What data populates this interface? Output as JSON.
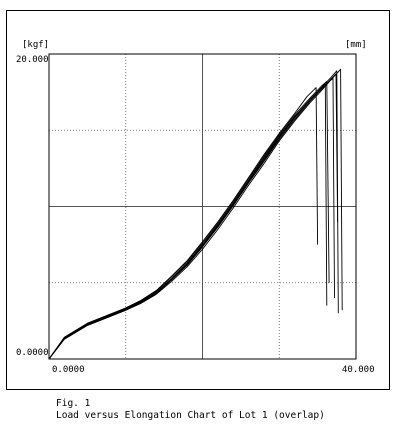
{
  "chart_data": {
    "type": "line",
    "y_unit": "[kgf]",
    "x_unit": "[mm]",
    "y_tick_labels": [
      "20.000",
      "0.0000"
    ],
    "x_tick_labels": [
      "0.0000",
      "40.000"
    ],
    "xlim": [
      0,
      40
    ],
    "ylim": [
      0,
      20
    ],
    "grid": true,
    "series": [
      {
        "x": [
          0,
          2,
          5,
          8,
          10,
          12,
          14,
          16,
          18,
          20,
          22,
          24,
          26,
          28,
          30,
          32,
          34,
          35.5,
          36.5,
          37.0,
          37.2
        ],
        "y": [
          0,
          1.4,
          2.3,
          2.9,
          3.3,
          3.8,
          4.4,
          5.3,
          6.3,
          7.5,
          8.8,
          10.2,
          11.7,
          13.2,
          14.6,
          15.9,
          17.0,
          17.7,
          18.2,
          18.4,
          4.0
        ]
      },
      {
        "x": [
          0,
          2,
          5,
          8,
          10,
          12,
          14,
          16,
          18,
          20,
          22,
          24,
          26,
          28,
          30,
          32,
          34,
          35.5,
          36.0,
          36.2
        ],
        "y": [
          0,
          1.3,
          2.2,
          2.8,
          3.2,
          3.7,
          4.3,
          5.2,
          6.2,
          7.4,
          8.7,
          10.1,
          11.6,
          13.0,
          14.5,
          15.8,
          17.0,
          17.8,
          18.0,
          3.5
        ]
      },
      {
        "x": [
          0,
          2,
          5,
          8,
          10,
          12,
          14,
          16,
          18,
          20,
          22,
          24,
          26,
          28,
          30,
          32,
          34,
          35.5,
          36.8,
          37.5,
          37.7
        ],
        "y": [
          0,
          1.35,
          2.25,
          2.85,
          3.25,
          3.75,
          4.35,
          5.25,
          6.25,
          7.45,
          8.75,
          10.15,
          11.65,
          13.1,
          14.55,
          15.85,
          17.0,
          17.8,
          18.5,
          18.9,
          3.0
        ]
      },
      {
        "x": [
          0,
          2,
          5,
          8,
          10,
          12,
          14,
          16,
          18,
          20,
          22,
          24,
          26,
          28,
          30,
          32,
          33.6,
          34.8,
          35.0
        ],
        "y": [
          0,
          1.42,
          2.35,
          2.95,
          3.35,
          3.85,
          4.5,
          5.45,
          6.45,
          7.7,
          9.0,
          10.4,
          11.9,
          13.4,
          14.8,
          16.1,
          17.2,
          17.8,
          7.5
        ]
      },
      {
        "x": [
          0,
          2,
          5,
          8,
          10,
          12,
          14,
          16,
          18,
          20,
          22,
          24,
          26,
          28,
          30,
          32,
          34,
          35.5,
          36.9,
          38.0,
          38.2
        ],
        "y": [
          0,
          1.3,
          2.2,
          2.8,
          3.2,
          3.65,
          4.25,
          5.1,
          6.05,
          7.2,
          8.5,
          9.9,
          11.4,
          12.8,
          14.3,
          15.6,
          16.8,
          17.6,
          18.4,
          19.0,
          3.2
        ]
      },
      {
        "x": [
          0,
          2,
          5,
          8,
          10,
          12,
          14,
          16,
          18,
          20,
          22,
          24,
          26,
          28,
          30,
          32,
          34,
          35.5,
          36.2,
          36.5
        ],
        "y": [
          0,
          1.36,
          2.28,
          2.9,
          3.3,
          3.8,
          4.45,
          5.4,
          6.4,
          7.6,
          8.9,
          10.3,
          11.8,
          13.3,
          14.7,
          16.0,
          17.1,
          17.9,
          18.2,
          5.0
        ]
      },
      {
        "x": [
          0,
          2,
          5,
          8,
          10,
          12,
          14,
          16,
          18,
          20,
          22,
          24,
          26,
          28,
          30,
          32,
          34,
          35.5,
          37.4,
          37.6
        ],
        "y": [
          0,
          1.33,
          2.24,
          2.86,
          3.26,
          3.72,
          4.3,
          5.2,
          6.15,
          7.35,
          8.65,
          10.05,
          11.55,
          12.95,
          14.4,
          15.7,
          16.9,
          17.7,
          18.7,
          9.0
        ]
      }
    ]
  },
  "caption": {
    "line1": "Fig. 1",
    "line2": "Load versus Elongation Chart of Lot 1 (overlap)"
  },
  "colors": {
    "line": "#000000",
    "grid": "#555555",
    "frame": "#000000"
  }
}
